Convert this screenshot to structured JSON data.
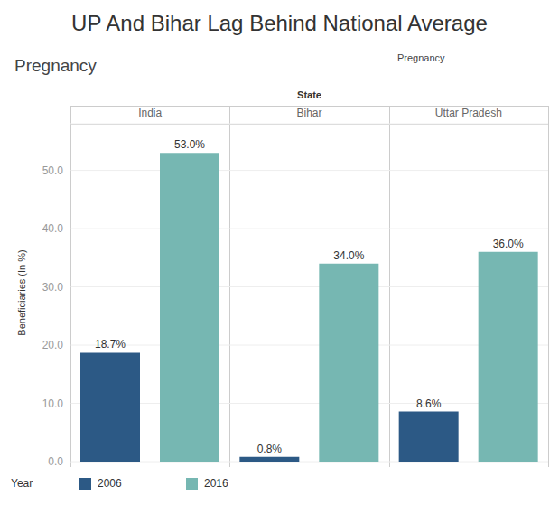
{
  "chart_data": {
    "type": "bar",
    "title": "UP And Bihar Lag Behind National Average",
    "subtitle": "Pregnancy",
    "annotations": [
      {
        "text": "Pregnancy"
      }
    ],
    "x_label": "State",
    "y_label": "Beneficiaries (In %)",
    "legend_title": "Year",
    "categories": [
      "India",
      "Bihar",
      "Uttar Pradesh"
    ],
    "series": [
      {
        "name": "2006",
        "color": "#2c5985",
        "values": [
          18.7,
          0.8,
          8.6
        ],
        "value_labels": [
          "18.7%",
          "0.8%",
          "8.6%"
        ]
      },
      {
        "name": "2016",
        "color": "#76b7b2",
        "values": [
          53.0,
          34.0,
          36.0
        ],
        "value_labels": [
          "53.0%",
          "34.0%",
          "36.0%"
        ]
      }
    ],
    "ylim": [
      0,
      58
    ],
    "yticks": [
      {
        "value": 0,
        "label": "0.0"
      },
      {
        "value": 10,
        "label": "10.0"
      },
      {
        "value": 20,
        "label": "20.0"
      },
      {
        "value": 30,
        "label": "30.0"
      },
      {
        "value": 40,
        "label": "40.0"
      },
      {
        "value": 50,
        "label": "50.0"
      }
    ],
    "grid": true,
    "data_labels": true,
    "legend": "bottom"
  }
}
